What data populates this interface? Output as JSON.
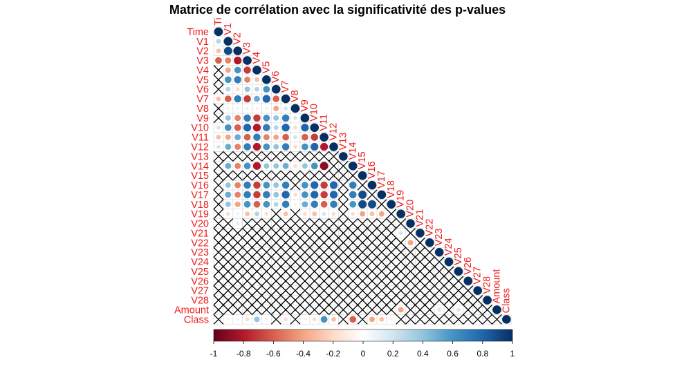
{
  "chart_data": {
    "type": "heatmap",
    "subtype": "correlation-matrix-lower-triangle",
    "title": "Matrice de corrélation avec la significativité des p-values",
    "variables": [
      "Time",
      "V1",
      "V2",
      "V3",
      "V4",
      "V5",
      "V6",
      "V7",
      "V8",
      "V9",
      "V10",
      "V11",
      "V12",
      "V13",
      "V14",
      "V15",
      "V16",
      "V17",
      "V18",
      "V19",
      "V20",
      "V21",
      "V22",
      "V23",
      "V24",
      "V25",
      "V26",
      "V27",
      "V28",
      "Amount",
      "Class"
    ],
    "column_labels": [
      "Ti",
      "V1",
      "V2",
      "V3",
      "V4",
      "V5",
      "V6",
      "V7",
      "V8",
      "V9",
      "V10",
      "V11",
      "V12",
      "V13",
      "V14",
      "V15",
      "V16",
      "V17",
      "V18",
      "V19",
      "V20",
      "V21",
      "V22",
      "V23",
      "V24",
      "V25",
      "V26",
      "V27",
      "V28",
      "Amount",
      "Class"
    ],
    "colorbar": {
      "range": [
        -1,
        1
      ],
      "ticks": [
        "-1",
        "-0.8",
        "-0.6",
        "-0.4",
        "-0.2",
        "0",
        "0.2",
        "0.4",
        "0.6",
        "0.8",
        "1"
      ],
      "colors": [
        "#67001f",
        "#b2182b",
        "#d6604d",
        "#f4a582",
        "#fddbc7",
        "#ffffff",
        "#d1e5f0",
        "#92c5de",
        "#4393c3",
        "#2166ac",
        "#053061"
      ]
    },
    "label_color": "#ee1c1c",
    "insignificant_marker": "cross",
    "diagonal_value": 1
  }
}
